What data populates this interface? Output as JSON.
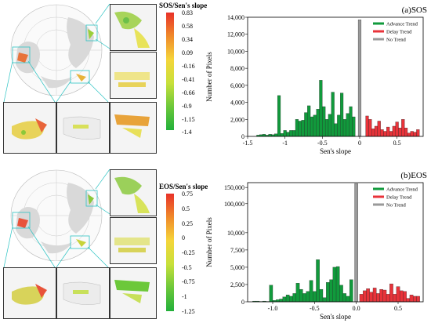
{
  "panels": [
    {
      "key": "sos",
      "label": "(a)SOS",
      "colorbar": {
        "title": "SOS/Sen's slope",
        "ticks": [
          "0.83",
          "0.58",
          "0.34",
          "0.09",
          "-0.16",
          "-0.41",
          "-0.66",
          "-0.9",
          "-1.15",
          "-1.4"
        ]
      },
      "chart_data": {
        "type": "bar",
        "xlabel": "Sen's slope",
        "ylabel": "Number of Pixels",
        "xlim": [
          -1.5,
          0.85
        ],
        "ylim": [
          0,
          14000
        ],
        "xticks": [
          -1.5,
          -1.0,
          -0.5,
          0.0,
          0.5
        ],
        "xtick_labels": [
          "-1.5",
          "-1",
          "-0.5",
          "0",
          "0.5"
        ],
        "yticks": [
          0,
          2000,
          4000,
          6000,
          8000,
          10000,
          12000,
          14000
        ],
        "ytick_labels": [
          "0",
          "2,000",
          "4,000",
          "6,000",
          "8,000",
          "10,000",
          "12,000",
          "14,000"
        ],
        "bin_width": 0.04,
        "legend": {
          "position": "top-right",
          "entries": [
            "Advance Trend",
            "Delay Trend",
            "No Trend"
          ]
        },
        "series": [
          {
            "name": "Advance Trend",
            "color": "#119a3c",
            "x": [
              -1.36,
              -1.32,
              -1.28,
              -1.24,
              -1.2,
              -1.16,
              -1.12,
              -1.08,
              -1.04,
              -1.0,
              -0.96,
              -0.92,
              -0.88,
              -0.84,
              -0.8,
              -0.76,
              -0.72,
              -0.68,
              -0.64,
              -0.6,
              -0.56,
              -0.52,
              -0.48,
              -0.44,
              -0.4,
              -0.36,
              -0.32,
              -0.28,
              -0.24,
              -0.2,
              -0.16,
              -0.12,
              -0.08
            ],
            "values": [
              150,
              200,
              250,
              150,
              250,
              200,
              300,
              4800,
              350,
              700,
              500,
              700,
              700,
              2000,
              1800,
              1900,
              2800,
              3600,
              2300,
              2500,
              3200,
              6600,
              3500,
              2000,
              2600,
              5200,
              1500,
              2500,
              5100,
              2000,
              2700,
              3500,
              2300
            ]
          },
          {
            "name": "Delay Trend",
            "color": "#e8333a",
            "x": [
              0.1,
              0.14,
              0.18,
              0.22,
              0.26,
              0.3,
              0.34,
              0.38,
              0.42,
              0.46,
              0.5,
              0.54,
              0.58,
              0.62,
              0.66,
              0.7,
              0.74,
              0.78
            ],
            "values": [
              2400,
              2000,
              900,
              1200,
              1800,
              800,
              600,
              1100,
              600,
              1200,
              1700,
              1000,
              2000,
              1000,
              400,
              600,
              500,
              800
            ]
          },
          {
            "name": "No Trend",
            "color": "#9a9a9a",
            "x": [
              0.0
            ],
            "values": [
              13700
            ]
          }
        ]
      }
    },
    {
      "key": "eos",
      "label": "(b)EOS",
      "colorbar": {
        "title": "EOS/Sen's slope",
        "ticks": [
          "0.75",
          "0.5",
          "0.25",
          "0",
          "-0.25",
          "-0.5",
          "-0.75",
          "-1",
          "-1.25"
        ]
      },
      "chart_data": {
        "type": "bar",
        "xlabel": "Sen's slope",
        "ylabel": "Number of Pixels",
        "xlim": [
          -1.3,
          0.8
        ],
        "ylim": [
          0,
          165000
        ],
        "axis_break": "y axis is non-linear: 0–10,000 occupies the lower part, 100,000–150,000 the upper part",
        "xticks": [
          -1.0,
          -0.5,
          0.0,
          0.5
        ],
        "xtick_labels": [
          "-1.0",
          "-0.5",
          "0.0",
          "0.5"
        ],
        "yticks": [
          0,
          2500,
          5000,
          7500,
          10000,
          100000,
          150000
        ],
        "ytick_labels": [
          "0",
          "2,500",
          "5,000",
          "7,500",
          "10,000",
          "100,000",
          "150,000"
        ],
        "bin_width": 0.04,
        "legend": {
          "position": "top-right",
          "entries": [
            "Advance Trend",
            "Delay Trend",
            "No Trend"
          ]
        },
        "series": [
          {
            "name": "Advance Trend",
            "color": "#119a3c",
            "x": [
              -1.22,
              -1.18,
              -1.14,
              -1.1,
              -1.06,
              -1.02,
              -0.98,
              -0.94,
              -0.9,
              -0.86,
              -0.82,
              -0.78,
              -0.74,
              -0.7,
              -0.66,
              -0.62,
              -0.58,
              -0.54,
              -0.5,
              -0.46,
              -0.42,
              -0.38,
              -0.34,
              -0.3,
              -0.26,
              -0.22,
              -0.18,
              -0.14,
              -0.1,
              -0.06
            ],
            "values": [
              100,
              100,
              50,
              100,
              50,
              2400,
              200,
              300,
              400,
              700,
              1000,
              800,
              1200,
              2700,
              1800,
              1200,
              1500,
              3100,
              1500,
              6100,
              1800,
              600,
              2800,
              3200,
              5000,
              5100,
              2400,
              1200,
              800,
              3200
            ]
          },
          {
            "name": "Delay Trend",
            "color": "#e8333a",
            "x": [
              0.06,
              0.1,
              0.14,
              0.18,
              0.22,
              0.26,
              0.3,
              0.34,
              0.38,
              0.42,
              0.46,
              0.5,
              0.54,
              0.58,
              0.62,
              0.66,
              0.7,
              0.74
            ],
            "values": [
              1100,
              1600,
              1900,
              1400,
              2000,
              1200,
              1800,
              1700,
              1100,
              2600,
              1100,
              2200,
              1600,
              1500,
              500,
              1000,
              800,
              800
            ]
          },
          {
            "name": "No Trend",
            "color": "#9a9a9a",
            "x": [
              0.0
            ],
            "values": [
              162000
            ]
          }
        ]
      }
    }
  ]
}
